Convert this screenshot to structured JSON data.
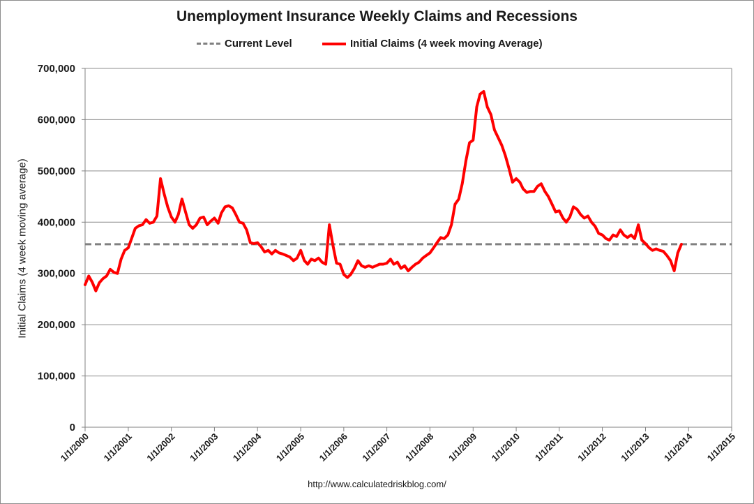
{
  "chart_data": {
    "type": "line",
    "title": "Unemployment Insurance Weekly Claims and Recessions",
    "ylabel": "Initial Claims (4 week moving average)",
    "xlabel": "",
    "ylim": [
      0,
      700000
    ],
    "yticks": [
      0,
      100000,
      200000,
      300000,
      400000,
      500000,
      600000,
      700000
    ],
    "ytick_labels": [
      "0",
      "100,000",
      "200,000",
      "300,000",
      "400,000",
      "500,000",
      "600,000",
      "700,000"
    ],
    "xlim": [
      "2000-01-01",
      "2015-01-01"
    ],
    "xtick_labels": [
      "1/1/2000",
      "1/1/2001",
      "1/1/2002",
      "1/1/2003",
      "1/1/2004",
      "1/1/2005",
      "1/1/2006",
      "1/1/2007",
      "1/1/2008",
      "1/1/2009",
      "1/1/2010",
      "1/1/2011",
      "1/1/2012",
      "1/1/2013",
      "1/1/2014",
      "1/1/2015"
    ],
    "grid": true,
    "legend_position": "top-center",
    "source": "http://www.calculatedriskblog.com/",
    "series": [
      {
        "name": "Current Level",
        "style": "dashed",
        "color": "#808080",
        "value": 357000
      },
      {
        "name": "Initial Claims (4 week moving Average)",
        "style": "solid",
        "color": "#ff0000",
        "points": [
          [
            "2000-01-01",
            278000
          ],
          [
            "2000-02-01",
            295000
          ],
          [
            "2000-03-01",
            283000
          ],
          [
            "2000-04-01",
            266000
          ],
          [
            "2000-05-01",
            282000
          ],
          [
            "2000-06-01",
            290000
          ],
          [
            "2000-07-01",
            295000
          ],
          [
            "2000-08-01",
            308000
          ],
          [
            "2000-09-01",
            302000
          ],
          [
            "2000-10-01",
            300000
          ],
          [
            "2000-11-01",
            328000
          ],
          [
            "2000-12-01",
            345000
          ],
          [
            "2001-01-01",
            350000
          ],
          [
            "2001-02-01",
            370000
          ],
          [
            "2001-03-01",
            388000
          ],
          [
            "2001-04-01",
            393000
          ],
          [
            "2001-05-01",
            395000
          ],
          [
            "2001-06-01",
            405000
          ],
          [
            "2001-07-01",
            398000
          ],
          [
            "2001-08-01",
            400000
          ],
          [
            "2001-09-01",
            412000
          ],
          [
            "2001-10-01",
            485000
          ],
          [
            "2001-11-01",
            455000
          ],
          [
            "2001-12-01",
            430000
          ],
          [
            "2002-01-01",
            410000
          ],
          [
            "2002-02-01",
            400000
          ],
          [
            "2002-03-01",
            415000
          ],
          [
            "2002-04-01",
            445000
          ],
          [
            "2002-05-01",
            420000
          ],
          [
            "2002-06-01",
            395000
          ],
          [
            "2002-07-01",
            388000
          ],
          [
            "2002-08-01",
            395000
          ],
          [
            "2002-09-01",
            408000
          ],
          [
            "2002-10-01",
            410000
          ],
          [
            "2002-11-01",
            395000
          ],
          [
            "2002-12-01",
            402000
          ],
          [
            "2003-01-01",
            408000
          ],
          [
            "2003-02-01",
            398000
          ],
          [
            "2003-03-01",
            418000
          ],
          [
            "2003-04-01",
            430000
          ],
          [
            "2003-05-01",
            432000
          ],
          [
            "2003-06-01",
            428000
          ],
          [
            "2003-07-01",
            415000
          ],
          [
            "2003-08-01",
            400000
          ],
          [
            "2003-09-01",
            398000
          ],
          [
            "2003-10-01",
            385000
          ],
          [
            "2003-11-01",
            360000
          ],
          [
            "2003-12-01",
            358000
          ],
          [
            "2004-01-01",
            360000
          ],
          [
            "2004-02-01",
            352000
          ],
          [
            "2004-03-01",
            342000
          ],
          [
            "2004-04-01",
            345000
          ],
          [
            "2004-05-01",
            338000
          ],
          [
            "2004-06-01",
            345000
          ],
          [
            "2004-07-01",
            340000
          ],
          [
            "2004-08-01",
            338000
          ],
          [
            "2004-09-01",
            335000
          ],
          [
            "2004-10-01",
            332000
          ],
          [
            "2004-11-01",
            325000
          ],
          [
            "2004-12-01",
            330000
          ],
          [
            "2005-01-01",
            345000
          ],
          [
            "2005-02-01",
            325000
          ],
          [
            "2005-03-01",
            318000
          ],
          [
            "2005-04-01",
            328000
          ],
          [
            "2005-05-01",
            325000
          ],
          [
            "2005-06-01",
            330000
          ],
          [
            "2005-07-01",
            322000
          ],
          [
            "2005-08-01",
            318000
          ],
          [
            "2005-09-01",
            395000
          ],
          [
            "2005-10-01",
            355000
          ],
          [
            "2005-11-01",
            320000
          ],
          [
            "2005-12-01",
            318000
          ],
          [
            "2006-01-01",
            298000
          ],
          [
            "2006-02-01",
            292000
          ],
          [
            "2006-03-01",
            298000
          ],
          [
            "2006-04-01",
            310000
          ],
          [
            "2006-05-01",
            325000
          ],
          [
            "2006-06-01",
            315000
          ],
          [
            "2006-07-01",
            312000
          ],
          [
            "2006-08-01",
            315000
          ],
          [
            "2006-09-01",
            312000
          ],
          [
            "2006-10-01",
            315000
          ],
          [
            "2006-11-01",
            318000
          ],
          [
            "2006-12-01",
            318000
          ],
          [
            "2007-01-01",
            320000
          ],
          [
            "2007-02-01",
            328000
          ],
          [
            "2007-03-01",
            318000
          ],
          [
            "2007-04-01",
            322000
          ],
          [
            "2007-05-01",
            310000
          ],
          [
            "2007-06-01",
            315000
          ],
          [
            "2007-07-01",
            305000
          ],
          [
            "2007-08-01",
            312000
          ],
          [
            "2007-09-01",
            318000
          ],
          [
            "2007-10-01",
            322000
          ],
          [
            "2007-11-01",
            330000
          ],
          [
            "2007-12-01",
            335000
          ],
          [
            "2008-01-01",
            340000
          ],
          [
            "2008-02-01",
            350000
          ],
          [
            "2008-03-01",
            360000
          ],
          [
            "2008-04-01",
            370000
          ],
          [
            "2008-05-01",
            368000
          ],
          [
            "2008-06-01",
            375000
          ],
          [
            "2008-07-01",
            395000
          ],
          [
            "2008-08-01",
            435000
          ],
          [
            "2008-09-01",
            445000
          ],
          [
            "2008-10-01",
            475000
          ],
          [
            "2008-11-01",
            520000
          ],
          [
            "2008-12-01",
            555000
          ],
          [
            "2009-01-01",
            560000
          ],
          [
            "2009-02-01",
            625000
          ],
          [
            "2009-03-01",
            650000
          ],
          [
            "2009-04-01",
            655000
          ],
          [
            "2009-05-01",
            625000
          ],
          [
            "2009-06-01",
            610000
          ],
          [
            "2009-07-01",
            580000
          ],
          [
            "2009-08-01",
            565000
          ],
          [
            "2009-09-01",
            550000
          ],
          [
            "2009-10-01",
            530000
          ],
          [
            "2009-11-01",
            505000
          ],
          [
            "2009-12-01",
            478000
          ],
          [
            "2010-01-01",
            485000
          ],
          [
            "2010-02-01",
            478000
          ],
          [
            "2010-03-01",
            465000
          ],
          [
            "2010-04-01",
            458000
          ],
          [
            "2010-05-01",
            460000
          ],
          [
            "2010-06-01",
            460000
          ],
          [
            "2010-07-01",
            470000
          ],
          [
            "2010-08-01",
            475000
          ],
          [
            "2010-09-01",
            460000
          ],
          [
            "2010-10-01",
            450000
          ],
          [
            "2010-11-01",
            435000
          ],
          [
            "2010-12-01",
            420000
          ],
          [
            "2011-01-01",
            422000
          ],
          [
            "2011-02-01",
            408000
          ],
          [
            "2011-03-01",
            400000
          ],
          [
            "2011-04-01",
            410000
          ],
          [
            "2011-05-01",
            430000
          ],
          [
            "2011-06-01",
            425000
          ],
          [
            "2011-07-01",
            415000
          ],
          [
            "2011-08-01",
            408000
          ],
          [
            "2011-09-01",
            412000
          ],
          [
            "2011-10-01",
            400000
          ],
          [
            "2011-11-01",
            392000
          ],
          [
            "2011-12-01",
            378000
          ],
          [
            "2012-01-01",
            375000
          ],
          [
            "2012-02-01",
            368000
          ],
          [
            "2012-03-01",
            365000
          ],
          [
            "2012-04-01",
            375000
          ],
          [
            "2012-05-01",
            372000
          ],
          [
            "2012-06-01",
            385000
          ],
          [
            "2012-07-01",
            375000
          ],
          [
            "2012-08-01",
            370000
          ],
          [
            "2012-09-01",
            375000
          ],
          [
            "2012-10-01",
            368000
          ],
          [
            "2012-11-01",
            395000
          ],
          [
            "2012-12-01",
            365000
          ],
          [
            "2013-01-01",
            358000
          ],
          [
            "2013-02-01",
            350000
          ],
          [
            "2013-03-01",
            345000
          ],
          [
            "2013-04-01",
            348000
          ],
          [
            "2013-05-01",
            345000
          ],
          [
            "2013-06-01",
            343000
          ],
          [
            "2013-07-01",
            335000
          ],
          [
            "2013-08-01",
            325000
          ],
          [
            "2013-09-01",
            305000
          ],
          [
            "2013-10-01",
            340000
          ],
          [
            "2013-11-01",
            357000
          ]
        ]
      }
    ]
  }
}
